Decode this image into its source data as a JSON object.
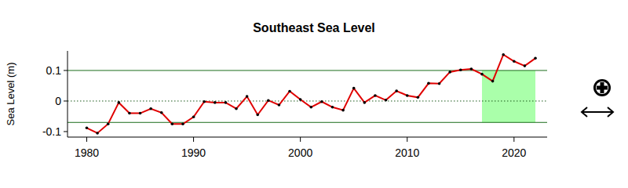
{
  "chart_data": {
    "type": "line",
    "title": "Southeast Sea Level",
    "y_label": "Sea Level (m)",
    "x": [
      1980,
      1981,
      1982,
      1983,
      1984,
      1985,
      1986,
      1987,
      1988,
      1989,
      1990,
      1991,
      1992,
      1993,
      1994,
      1995,
      1996,
      1997,
      1998,
      1999,
      2000,
      2001,
      2002,
      2003,
      2004,
      2005,
      2006,
      2007,
      2008,
      2009,
      2010,
      2011,
      2012,
      2013,
      2014,
      2015,
      2016,
      2017,
      2018,
      2019,
      2020,
      2021,
      2022
    ],
    "values": [
      -0.088,
      -0.105,
      -0.075,
      -0.005,
      -0.04,
      -0.04,
      -0.025,
      -0.038,
      -0.075,
      -0.075,
      -0.052,
      -0.002,
      -0.005,
      -0.005,
      -0.025,
      0.015,
      -0.045,
      0.002,
      -0.013,
      0.032,
      0.005,
      -0.02,
      -0.002,
      -0.02,
      -0.03,
      0.042,
      -0.005,
      0.018,
      0.003,
      0.033,
      0.018,
      0.012,
      0.058,
      0.057,
      0.095,
      0.102,
      0.105,
      0.088,
      0.065,
      0.152,
      0.13,
      0.115,
      0.14
    ],
    "color": "#e00000",
    "marker": "circle",
    "xlim": [
      1978.2,
      2023.1
    ],
    "xticks": [
      1980,
      1990,
      2000,
      2010,
      2020
    ],
    "ylim": [
      -0.118,
      0.164
    ],
    "yticks": [
      -0.1,
      0,
      0.1
    ],
    "upper_bound": 0.1,
    "mean_line": 0,
    "lower_bound": -0.07,
    "highlight": {
      "x": [
        2017,
        2022
      ],
      "y": [
        -0.07,
        0.1
      ]
    }
  }
}
